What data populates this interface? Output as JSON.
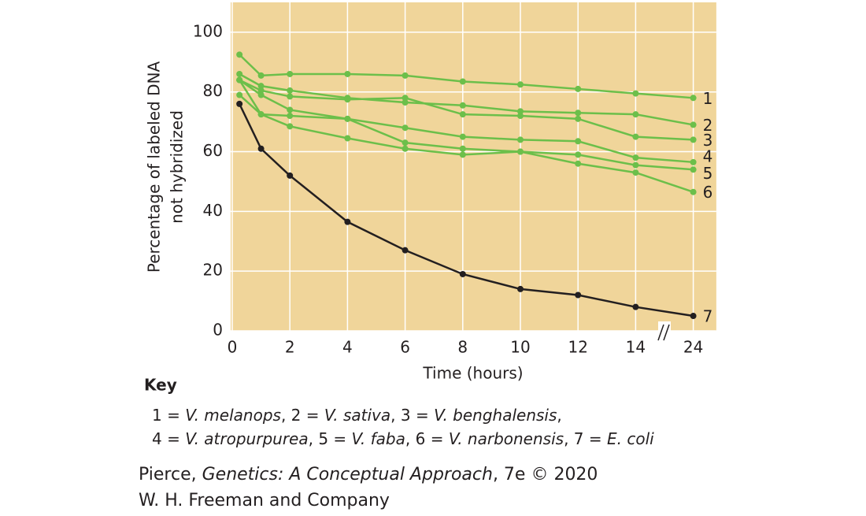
{
  "chart_data": {
    "type": "line",
    "x_label": "Time (hours)",
    "y_label": [
      "Percentage of labeled DNA",
      "not hybridized"
    ],
    "x": [
      0.25,
      1,
      2,
      4,
      6,
      8,
      10,
      12,
      14,
      24
    ],
    "xlim": [
      0,
      24.8
    ],
    "xticks": [
      0,
      2,
      4,
      6,
      8,
      10,
      12,
      14,
      24
    ],
    "x_break": [
      14,
      24
    ],
    "ylim": [
      0,
      110
    ],
    "yticks": [
      0,
      20,
      40,
      60,
      80,
      100
    ],
    "grid": true,
    "background": "#f0d59a",
    "series": [
      {
        "name": "1",
        "color": "#6cbf4a",
        "values": [
          92.5,
          85.5,
          86,
          86,
          85.5,
          83.5,
          82.5,
          81,
          79.5,
          78
        ]
      },
      {
        "name": "2",
        "color": "#6cbf4a",
        "values": [
          86,
          82,
          80.5,
          78,
          76.5,
          75.5,
          73.5,
          73,
          72.5,
          69
        ]
      },
      {
        "name": "3",
        "color": "#6cbf4a",
        "values": [
          84,
          80.5,
          78.5,
          77.5,
          78,
          72.5,
          72,
          71,
          65,
          64
        ]
      },
      {
        "name": "4",
        "color": "#6cbf4a",
        "values": [
          84,
          79,
          74,
          71,
          68,
          65,
          64,
          63.5,
          58,
          56.5
        ]
      },
      {
        "name": "5",
        "color": "#6cbf4a",
        "values": [
          79,
          72.5,
          72,
          71,
          63,
          61,
          60,
          59,
          55.5,
          54
        ]
      },
      {
        "name": "6",
        "color": "#6cbf4a",
        "values": [
          84,
          72.5,
          68.5,
          64.5,
          61,
          59,
          60,
          56,
          53,
          46.5
        ]
      },
      {
        "name": "7",
        "color": "#231f20",
        "values": [
          76,
          61,
          52,
          36.5,
          27,
          19,
          14,
          12,
          8,
          5
        ]
      }
    ]
  },
  "key": {
    "title": "Key",
    "lines": [
      [
        {
          "text": "1 = "
        },
        {
          "text": "V. melanops",
          "italic": true
        },
        {
          "text": ", 2 = "
        },
        {
          "text": "V. sativa",
          "italic": true
        },
        {
          "text": ", 3 = "
        },
        {
          "text": "V. benghalensis",
          "italic": true
        },
        {
          "text": ","
        }
      ],
      [
        {
          "text": "4 = "
        },
        {
          "text": "V. atropurpurea",
          "italic": true
        },
        {
          "text": ", 5 = "
        },
        {
          "text": "V. faba",
          "italic": true
        },
        {
          "text": ", 6 = "
        },
        {
          "text": "V. narbonensis",
          "italic": true
        },
        {
          "text": ", 7 = "
        },
        {
          "text": "E. coli",
          "italic": true
        }
      ]
    ]
  },
  "credit": {
    "lines": [
      [
        {
          "text": "Pierce, "
        },
        {
          "text": "Genetics: A Conceptual Approach",
          "italic": true
        },
        {
          "text": ", 7e © 2020"
        }
      ],
      [
        {
          "text": "W. H. Freeman and Company"
        }
      ]
    ]
  }
}
